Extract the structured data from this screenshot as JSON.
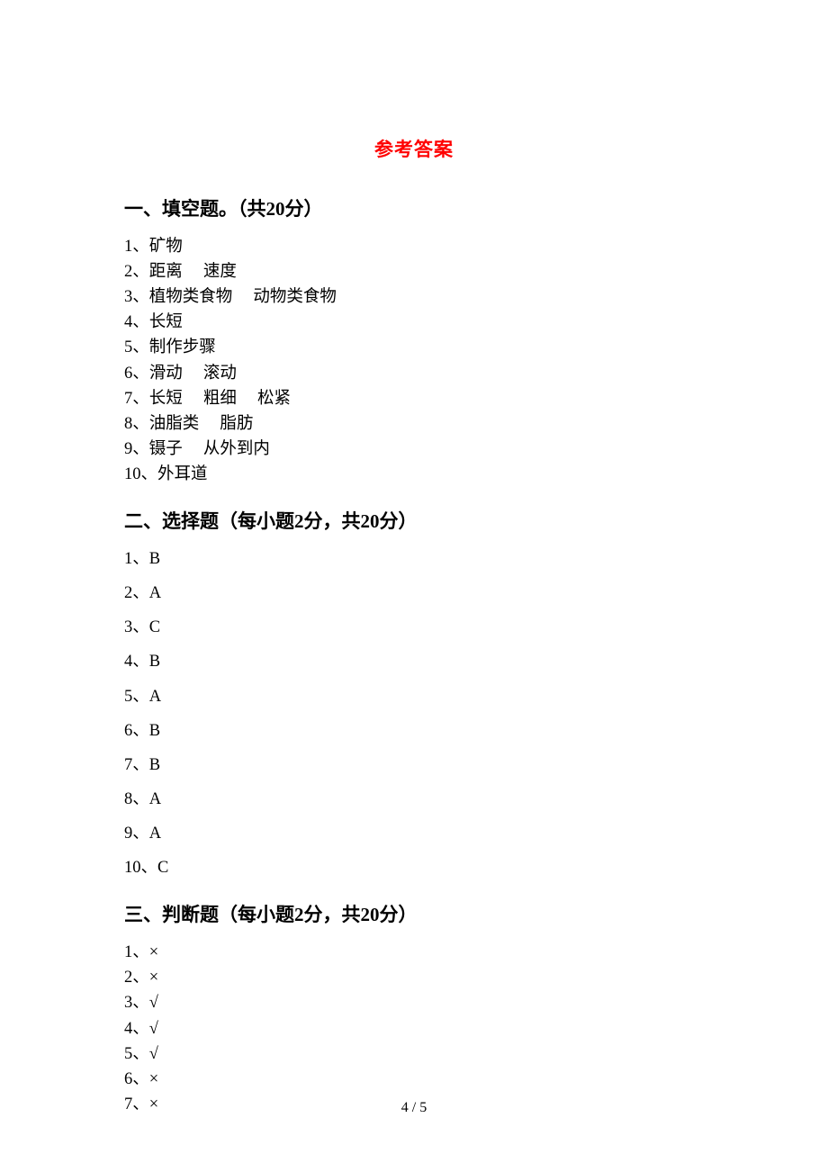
{
  "title": "参考答案",
  "sections": [
    {
      "header": "一、填空题。（共20分）",
      "compact": true,
      "items": [
        {
          "num": "1",
          "parts": [
            "矿物"
          ]
        },
        {
          "num": "2",
          "parts": [
            "距离",
            "速度"
          ]
        },
        {
          "num": "3",
          "parts": [
            "植物类食物",
            "动物类食物"
          ]
        },
        {
          "num": "4",
          "parts": [
            "长短"
          ]
        },
        {
          "num": "5",
          "parts": [
            "制作步骤"
          ]
        },
        {
          "num": "6",
          "parts": [
            "滑动",
            "滚动"
          ]
        },
        {
          "num": "7",
          "parts": [
            "长短",
            "粗细",
            "松紧"
          ]
        },
        {
          "num": "8",
          "parts": [
            "油脂类",
            "脂肪"
          ]
        },
        {
          "num": "9",
          "parts": [
            "镊子",
            "从外到内"
          ]
        },
        {
          "num": "10",
          "parts": [
            "外耳道"
          ]
        }
      ]
    },
    {
      "header": "二、选择题（每小题2分，共20分）",
      "compact": false,
      "items": [
        {
          "num": "1",
          "parts": [
            "B"
          ]
        },
        {
          "num": "2",
          "parts": [
            "A"
          ]
        },
        {
          "num": "3",
          "parts": [
            "C"
          ]
        },
        {
          "num": "4",
          "parts": [
            "B"
          ]
        },
        {
          "num": "5",
          "parts": [
            "A"
          ]
        },
        {
          "num": "6",
          "parts": [
            "B"
          ]
        },
        {
          "num": "7",
          "parts": [
            "B"
          ]
        },
        {
          "num": "8",
          "parts": [
            "A"
          ]
        },
        {
          "num": "9",
          "parts": [
            "A"
          ]
        },
        {
          "num": "10",
          "parts": [
            "C"
          ]
        }
      ]
    },
    {
      "header": "三、判断题（每小题2分，共20分）",
      "compact": true,
      "items": [
        {
          "num": "1",
          "parts": [
            "×"
          ]
        },
        {
          "num": "2",
          "parts": [
            "×"
          ]
        },
        {
          "num": "3",
          "parts": [
            "√"
          ]
        },
        {
          "num": "4",
          "parts": [
            "√"
          ]
        },
        {
          "num": "5",
          "parts": [
            "√"
          ]
        },
        {
          "num": "6",
          "parts": [
            "×"
          ]
        },
        {
          "num": "7",
          "parts": [
            "×"
          ]
        }
      ]
    }
  ],
  "pageNumber": "4 / 5",
  "style": {
    "title_color": "#ff0000",
    "text_color": "#000000",
    "background": "#ffffff",
    "title_fontsize": 21,
    "header_fontsize": 21,
    "body_fontsize": 18.5,
    "part_gap": "     "
  }
}
